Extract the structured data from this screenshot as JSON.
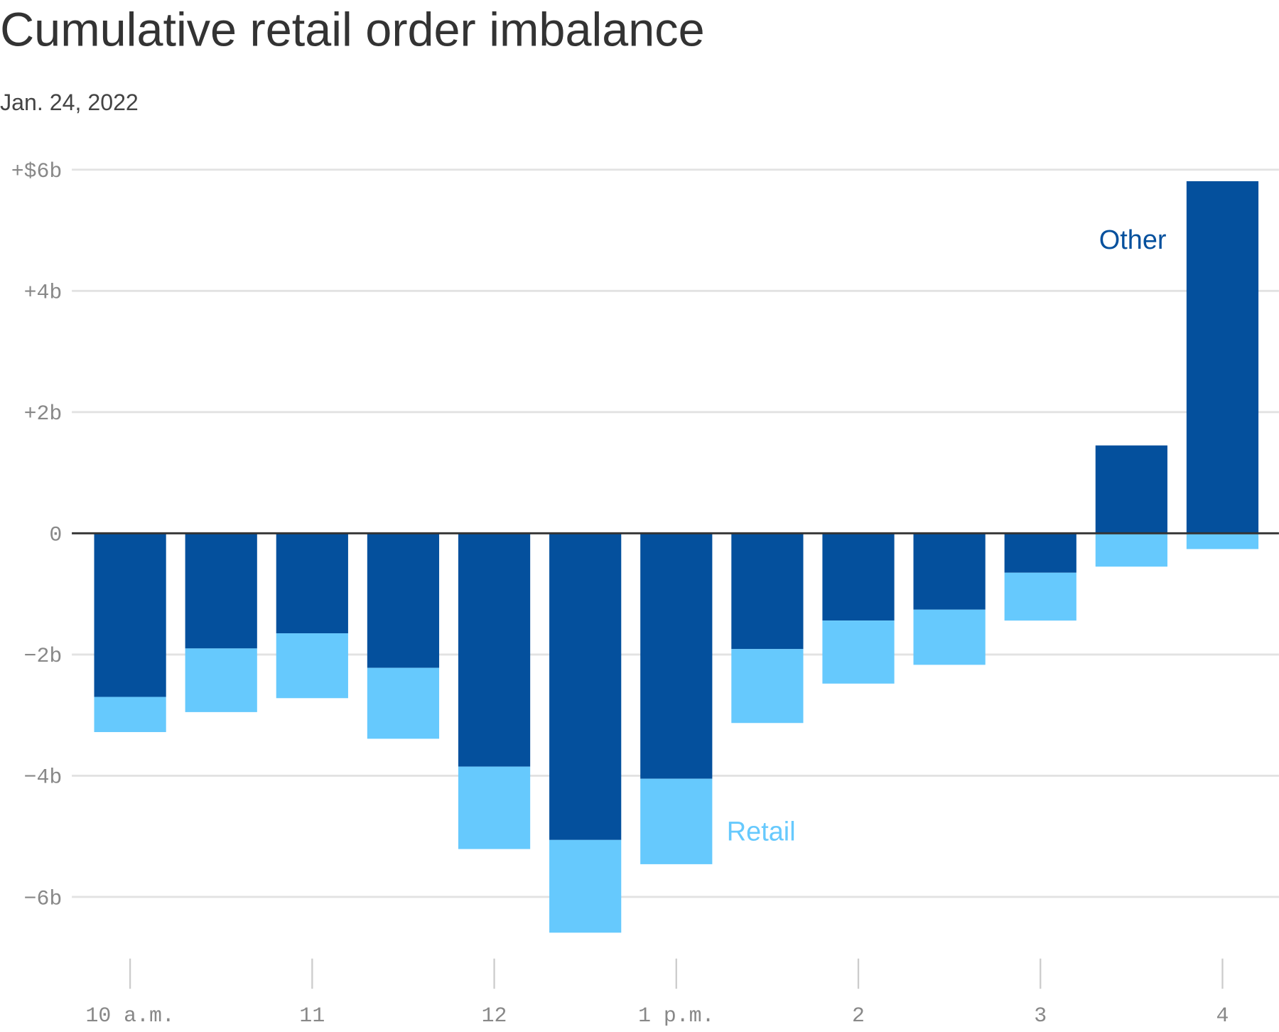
{
  "chart_data": {
    "type": "bar",
    "title": "Cumulative retail order imbalance",
    "subtitle": "Jan. 24, 2022",
    "x": [
      10,
      10.5,
      11,
      11.5,
      12,
      12.5,
      13,
      13.5,
      14,
      14.5,
      15,
      15.5,
      16
    ],
    "series": [
      {
        "name": "Other",
        "color": "#04509d",
        "values": [
          -2.7,
          -1.9,
          -1.65,
          -2.22,
          -3.85,
          -5.06,
          -4.05,
          -1.91,
          -1.44,
          -1.26,
          -0.65,
          1.45,
          5.81
        ]
      },
      {
        "name": "Retail",
        "color": "#66c9fd",
        "values": [
          -0.58,
          -1.05,
          -1.07,
          -1.17,
          -1.36,
          -1.53,
          -1.41,
          -1.22,
          -1.04,
          -0.91,
          -0.79,
          -0.55,
          -0.26
        ]
      }
    ],
    "xlim": [
      9.68,
      16.31
    ],
    "xticks": [
      {
        "value": 10,
        "label": "10 a.m."
      },
      11,
      12,
      {
        "value": 13,
        "label": "1 p.m."
      },
      {
        "value": 14,
        "label": "2"
      },
      {
        "value": 15,
        "label": "3"
      },
      {
        "value": 16,
        "label": "4"
      }
    ],
    "ylim": [
      -6.6,
      6
    ],
    "yticks": [
      {
        "value": 6,
        "label": "+$6b"
      },
      {
        "value": 4,
        "label": "+4b"
      },
      {
        "value": 2,
        "label": "+2b"
      },
      0,
      {
        "value": -2,
        "label": "−2b"
      },
      {
        "value": -4,
        "label": "−4b"
      },
      {
        "value": -6,
        "label": "−6b"
      }
    ],
    "grid": true
  }
}
